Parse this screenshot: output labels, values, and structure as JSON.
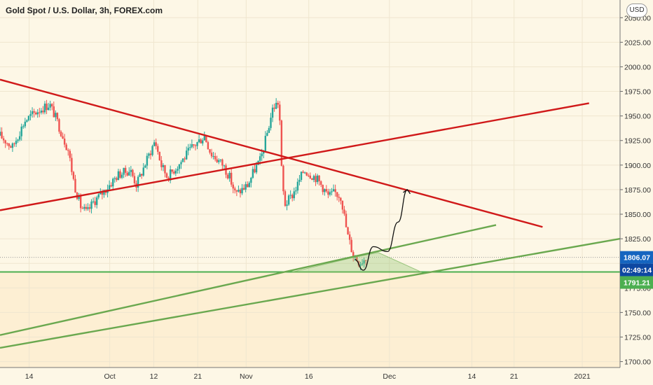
{
  "window": {
    "title": "Gold Spot / U.S. Dollar, 3h, FOREX.com",
    "currency_button": "USD"
  },
  "colors": {
    "background": "#fdf7e6",
    "up_candle": "#26a69a",
    "down_candle": "#ef5350",
    "resistance_line": "#d01919",
    "support_line": "#6aa84f",
    "current_price": "#1565c0",
    "support_level": "#4caf50"
  },
  "chart_data": {
    "type": "candlestick",
    "symbol": "Gold Spot / U.S. Dollar",
    "interval": "3h",
    "source": "FOREX.com",
    "x_ticks": [
      "14",
      "Oct",
      "12",
      "21",
      "Nov",
      "16",
      "Dec",
      "14",
      "21",
      "2021"
    ],
    "y_ticks": [
      1700,
      1725,
      1750,
      1775,
      1800,
      1825,
      1850,
      1875,
      1900,
      1925,
      1950,
      1975,
      2000,
      2025,
      2050
    ],
    "y_tick_labels": [
      "1700.00",
      "1725.00",
      "1750.00",
      "1775.00",
      "1800.00",
      "1825.00",
      "1850.00",
      "1875.00",
      "1900.00",
      "1925.00",
      "1950.00",
      "1975.00",
      "2000.00",
      "2025.00",
      "2050.00"
    ],
    "ylim": [
      1694,
      2068
    ],
    "xlim": [
      0,
      100
    ],
    "price_path": [
      [
        0,
        1930
      ],
      [
        2,
        1918
      ],
      [
        4,
        1945
      ],
      [
        6,
        1955
      ],
      [
        8,
        1962
      ],
      [
        9,
        1948
      ],
      [
        11,
        1915
      ],
      [
        12,
        1880
      ],
      [
        13,
        1858
      ],
      [
        14,
        1851
      ],
      [
        15,
        1862
      ],
      [
        17,
        1875
      ],
      [
        19,
        1890
      ],
      [
        21,
        1895
      ],
      [
        22,
        1880
      ],
      [
        24,
        1910
      ],
      [
        25,
        1925
      ],
      [
        26,
        1900
      ],
      [
        27,
        1888
      ],
      [
        29,
        1902
      ],
      [
        31,
        1918
      ],
      [
        33,
        1930
      ],
      [
        34,
        1912
      ],
      [
        36,
        1900
      ],
      [
        37,
        1888
      ],
      [
        38,
        1870
      ],
      [
        40,
        1880
      ],
      [
        41,
        1895
      ],
      [
        42,
        1905
      ],
      [
        43,
        1930
      ],
      [
        44,
        1958
      ],
      [
        45,
        1965
      ],
      [
        45.5,
        1880
      ],
      [
        46,
        1860
      ],
      [
        47,
        1868
      ],
      [
        48,
        1880
      ],
      [
        49,
        1895
      ],
      [
        51,
        1887
      ],
      [
        52,
        1878
      ],
      [
        53,
        1868
      ],
      [
        54,
        1872
      ],
      [
        55,
        1868
      ],
      [
        56,
        1830
      ],
      [
        57,
        1808
      ],
      [
        58,
        1801
      ],
      [
        59,
        1806
      ]
    ],
    "current_price_label": "1806.07",
    "countdown_label": "02:49:14",
    "support_price_label": "1791.21",
    "current_price": 1806.07,
    "support_price": 1791.21,
    "trendlines": [
      {
        "role": "descending-resistance",
        "color": "#d01919",
        "points": [
          [
            0,
            1987
          ],
          [
            87.5,
            1837
          ]
        ]
      },
      {
        "role": "ascending-red",
        "color": "#d01919",
        "points": [
          [
            0,
            1854
          ],
          [
            95,
            1963
          ]
        ]
      },
      {
        "role": "upper-green-channel",
        "color": "#6aa84f",
        "points": [
          [
            0,
            1727
          ],
          [
            80,
            1839
          ]
        ]
      },
      {
        "role": "lower-green-channel",
        "color": "#6aa84f",
        "points": [
          [
            0,
            1714
          ],
          [
            100,
            1825
          ]
        ]
      }
    ],
    "projection_path": [
      [
        57.2,
        1804
      ],
      [
        58.6,
        1793
      ],
      [
        60.2,
        1817
      ],
      [
        62.5,
        1812
      ],
      [
        64.2,
        1842
      ],
      [
        65.7,
        1875
      ]
    ],
    "triangle": [
      [
        57,
        1806
      ],
      [
        61,
        1811
      ],
      [
        68,
        1791
      ],
      [
        47,
        1791
      ]
    ]
  }
}
